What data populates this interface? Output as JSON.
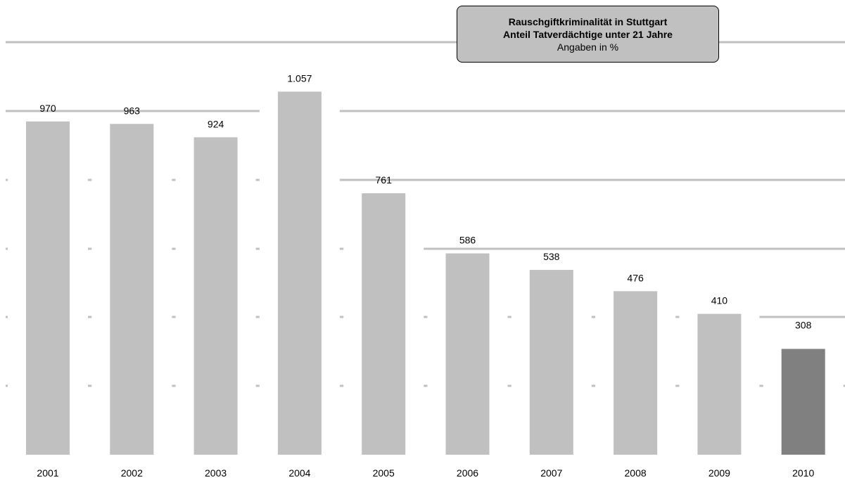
{
  "chart_data": {
    "type": "bar",
    "title": "Rauschgiftkriminalität in Stuttgart",
    "subtitle": "Anteil Tatverdächtige unter 21 Jahre",
    "unit_note": "Angaben in %",
    "categories": [
      "2001",
      "2002",
      "2003",
      "2004",
      "2005",
      "2006",
      "2007",
      "2008",
      "2009",
      "2010"
    ],
    "values": [
      970,
      963,
      924,
      1057,
      761,
      586,
      538,
      476,
      410,
      308
    ],
    "value_labels": [
      "970",
      "963",
      "924",
      "1.057",
      "761",
      "586",
      "538",
      "476",
      "410",
      "308"
    ],
    "ylim": [
      0,
      1200
    ],
    "grid": true,
    "gridline_values": [
      200,
      400,
      600,
      800,
      1000,
      1200
    ],
    "colors": {
      "bar": "#c0c0c0",
      "bar_highlight": "#808080",
      "grid": "#c0c0c0"
    },
    "highlight_index": 9
  }
}
